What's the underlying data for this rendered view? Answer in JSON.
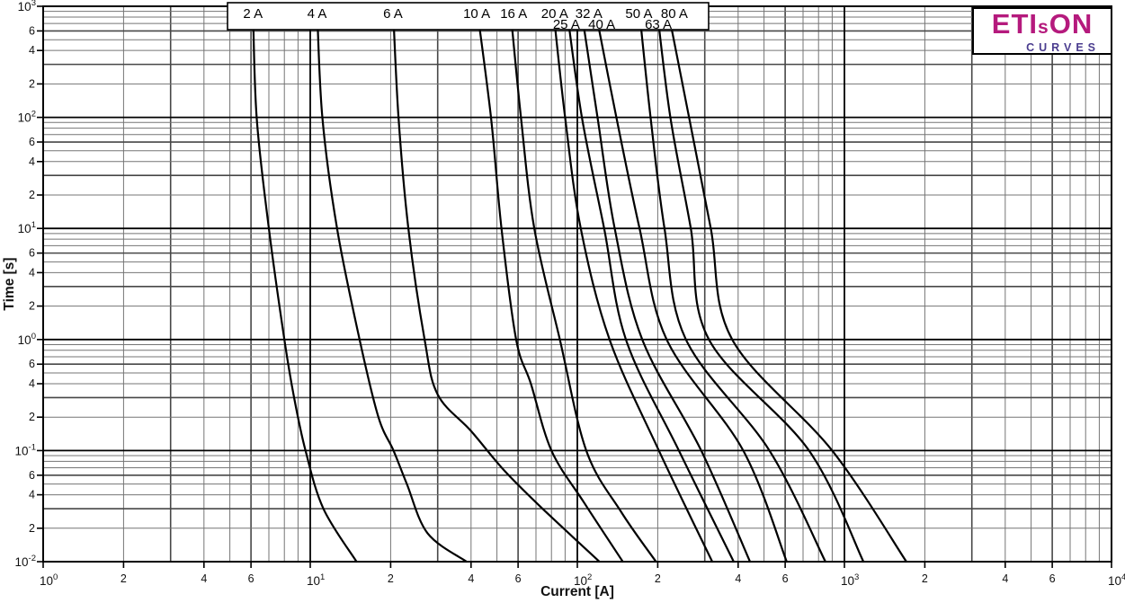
{
  "logo": {
    "text_main": "ETI",
    "text_small": "s",
    "text_end": "ON",
    "subtitle": "CURVES",
    "main_color": "#b51a7d",
    "subtitle_color": "#4b3d8f"
  },
  "axes": {
    "x": {
      "title": "Current [A]",
      "scale": "log",
      "min_exponent": 0,
      "max_exponent": 4,
      "labeled_minors": [
        2,
        4,
        6
      ]
    },
    "y": {
      "title": "Time [s]",
      "scale": "log",
      "min_exponent": -2,
      "max_exponent": 3,
      "labeled_minors": [
        2,
        4,
        6
      ]
    }
  },
  "chart_data": {
    "type": "line",
    "title": "",
    "xlabel": "Current [A]",
    "ylabel": "Time [s]",
    "x_scale": "log",
    "y_scale": "log",
    "xlim": [
      1,
      10000
    ],
    "ylim": [
      0.01,
      1000
    ],
    "grid": "log major + minor (minor lines at 2-9, emphasized at 3 and 6)",
    "legend_position": "label box at top, two rows",
    "line_color": "#000000",
    "series": [
      {
        "name": "2 A",
        "label_row": 1,
        "label_dx": 0,
        "points": [
          [
            6.1,
            1000
          ],
          [
            6.3,
            100
          ],
          [
            7.0,
            10
          ],
          [
            8.0,
            1
          ],
          [
            8.7,
            0.3
          ],
          [
            9.6,
            0.1
          ],
          [
            11.2,
            0.03
          ],
          [
            14.9,
            0.01
          ]
        ]
      },
      {
        "name": "4 A",
        "label_row": 1,
        "label_dx": 0,
        "points": [
          [
            10.6,
            1000
          ],
          [
            11.1,
            100
          ],
          [
            12.6,
            10
          ],
          [
            15.3,
            1
          ],
          [
            18.0,
            0.2
          ],
          [
            20.5,
            0.1
          ],
          [
            23.0,
            0.05
          ],
          [
            27.5,
            0.018
          ],
          [
            38.5,
            0.01
          ]
        ]
      },
      {
        "name": "6 A",
        "label_row": 1,
        "label_dx": 0,
        "points": [
          [
            20.4,
            1000
          ],
          [
            21.4,
            100
          ],
          [
            23.3,
            10
          ],
          [
            26.8,
            1
          ],
          [
            30.0,
            0.32
          ],
          [
            40.0,
            0.15
          ],
          [
            53.0,
            0.067
          ],
          [
            72.0,
            0.032
          ],
          [
            121,
            0.01
          ]
        ]
      },
      {
        "name": "10 A",
        "label_row": 1,
        "label_dx": 0,
        "points": [
          [
            42,
            1000
          ],
          [
            47.5,
            100
          ],
          [
            52,
            10
          ],
          [
            59,
            1
          ],
          [
            67,
            0.4
          ],
          [
            80,
            0.1
          ],
          [
            106,
            0.034
          ],
          [
            148,
            0.01
          ]
        ]
      },
      {
        "name": "16 A",
        "label_row": 1,
        "label_dx": 4,
        "points": [
          [
            56,
            1000
          ],
          [
            61.5,
            100
          ],
          [
            69,
            10
          ],
          [
            86,
            1
          ],
          [
            108,
            0.1
          ],
          [
            146,
            0.028
          ],
          [
            197,
            0.01
          ]
        ]
      },
      {
        "name": "20 A",
        "label_row": 1,
        "label_dx": 2,
        "points": [
          [
            81,
            1000
          ],
          [
            90,
            100
          ],
          [
            103,
            10
          ],
          [
            132,
            1
          ],
          [
            202,
            0.1
          ],
          [
            320,
            0.01
          ]
        ]
      },
      {
        "name": "25 A",
        "label_row": 2,
        "label_dx": 0,
        "points": [
          [
            91,
            1000
          ],
          [
            104,
            100
          ],
          [
            126,
            10
          ],
          [
            152,
            1
          ],
          [
            240,
            0.1
          ],
          [
            385,
            0.01
          ]
        ]
      },
      {
        "name": "32 A",
        "label_row": 1,
        "label_dx": 9,
        "points": [
          [
            103,
            1000
          ],
          [
            119,
            100
          ],
          [
            138,
            10
          ],
          [
            175,
            1
          ],
          [
            291,
            0.1
          ],
          [
            443,
            0.01
          ]
        ]
      },
      {
        "name": "40 A",
        "label_row": 2,
        "label_dx": 8,
        "points": [
          [
            116,
            1000
          ],
          [
            140,
            100
          ],
          [
            171,
            10
          ],
          [
            216,
            1
          ],
          [
            418,
            0.1
          ],
          [
            608,
            0.01
          ]
        ]
      },
      {
        "name": "50 A",
        "label_row": 1,
        "label_dx": 0,
        "points": [
          [
            170,
            1000
          ],
          [
            188,
            100
          ],
          [
            212,
            10
          ],
          [
            255,
            1
          ],
          [
            524,
            0.1
          ],
          [
            849,
            0.01
          ]
        ]
      },
      {
        "name": "63 A",
        "label_row": 2,
        "label_dx": 2,
        "points": [
          [
            198,
            1000
          ],
          [
            223,
            100
          ],
          [
            266,
            10
          ],
          [
            311,
            1
          ],
          [
            737,
            0.1
          ],
          [
            1178,
            0.01
          ]
        ]
      },
      {
        "name": "80 A",
        "label_row": 1,
        "label_dx": 8,
        "points": [
          [
            217,
            1000
          ],
          [
            262,
            100
          ],
          [
            316,
            10
          ],
          [
            380,
            1
          ],
          [
            900,
            0.1
          ],
          [
            1706,
            0.01
          ]
        ]
      }
    ]
  }
}
